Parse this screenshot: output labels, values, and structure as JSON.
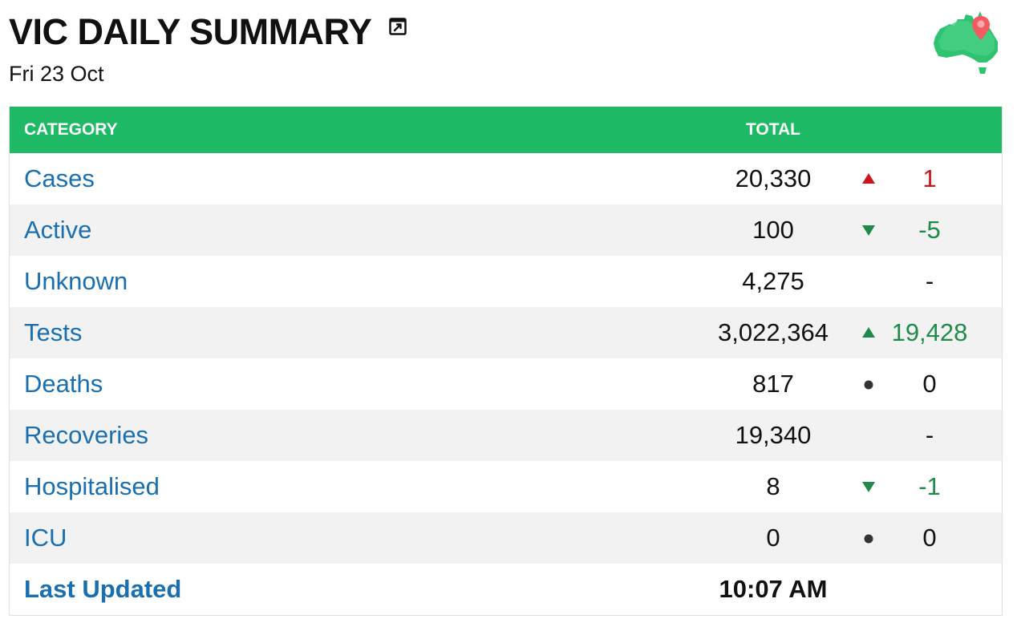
{
  "header": {
    "title": "VIC DAILY SUMMARY",
    "date": "Fri 23 Oct"
  },
  "icons": {
    "popout": "external-link-icon",
    "logo": "australia-map-icon"
  },
  "colors": {
    "header_bg": "#1fba66",
    "link": "#1a6fb0",
    "increase_bad": "#d0141d",
    "change_good": "#1f8a4a",
    "row_alt": "#f2f2f2"
  },
  "table": {
    "col_category": "CATEGORY",
    "col_total": "TOTAL",
    "rows": [
      {
        "category": "Cases",
        "total": "20,330",
        "trend": "up-bad",
        "delta": "1"
      },
      {
        "category": "Active",
        "total": "100",
        "trend": "down",
        "delta": "-5"
      },
      {
        "category": "Unknown",
        "total": "4,275",
        "trend": "none",
        "delta": "-"
      },
      {
        "category": "Tests",
        "total": "3,022,364",
        "trend": "up-good",
        "delta": "19,428"
      },
      {
        "category": "Deaths",
        "total": "817",
        "trend": "flat",
        "delta": "0"
      },
      {
        "category": "Recoveries",
        "total": "19,340",
        "trend": "none",
        "delta": "-"
      },
      {
        "category": "Hospitalised",
        "total": "8",
        "trend": "down",
        "delta": "-1"
      },
      {
        "category": "ICU",
        "total": "0",
        "trend": "flat",
        "delta": "0"
      }
    ],
    "footer": {
      "label": "Last Updated",
      "value": "10:07 AM"
    }
  }
}
